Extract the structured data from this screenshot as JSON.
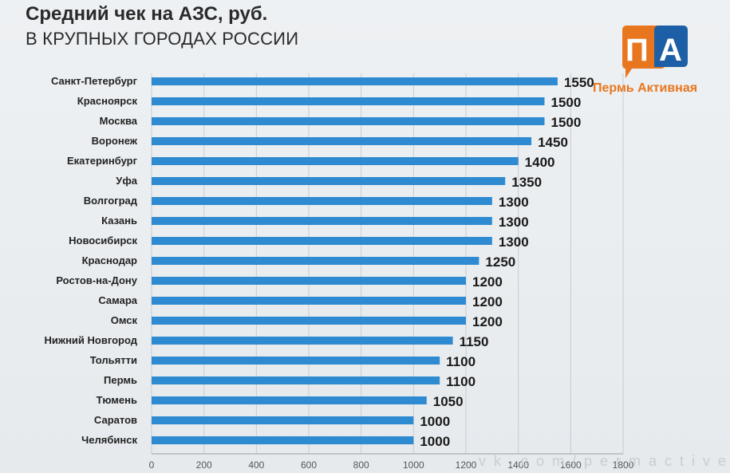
{
  "chart_data": {
    "type": "bar",
    "orientation": "horizontal",
    "title": "Средний чек на АЗС, руб.",
    "subtitle": "В КРУПНЫХ ГОРОДАХ РОССИИ",
    "categories": [
      "Санкт-Петербург",
      "Красноярск",
      "Москва",
      "Воронеж",
      "Екатеринбург",
      "Уфа",
      "Волгоград",
      "Казань",
      "Новосибирск",
      "Краснодар",
      "Ростов-на-Дону",
      "Самара",
      "Омск",
      "Нижний Новгород",
      "Тольятти",
      "Пермь",
      "Тюмень",
      "Саратов",
      "Челябинск"
    ],
    "values": [
      1550,
      1500,
      1500,
      1450,
      1400,
      1350,
      1300,
      1300,
      1300,
      1250,
      1200,
      1200,
      1200,
      1150,
      1100,
      1100,
      1050,
      1000,
      1000
    ],
    "xlim": [
      0,
      1800
    ],
    "xticks": [
      "0",
      "200",
      "400",
      "600",
      "800",
      "1000",
      "1200",
      "1400",
      "1600",
      "1800"
    ],
    "grid": "vertical",
    "bar_color": "#2e8bd1"
  },
  "logo": {
    "letters": "ПА",
    "name": "Пермь Активная",
    "watermark": "vk.com/permactive"
  },
  "colors": {
    "orange": "#e8761e",
    "blue": "#1d5fa6"
  }
}
